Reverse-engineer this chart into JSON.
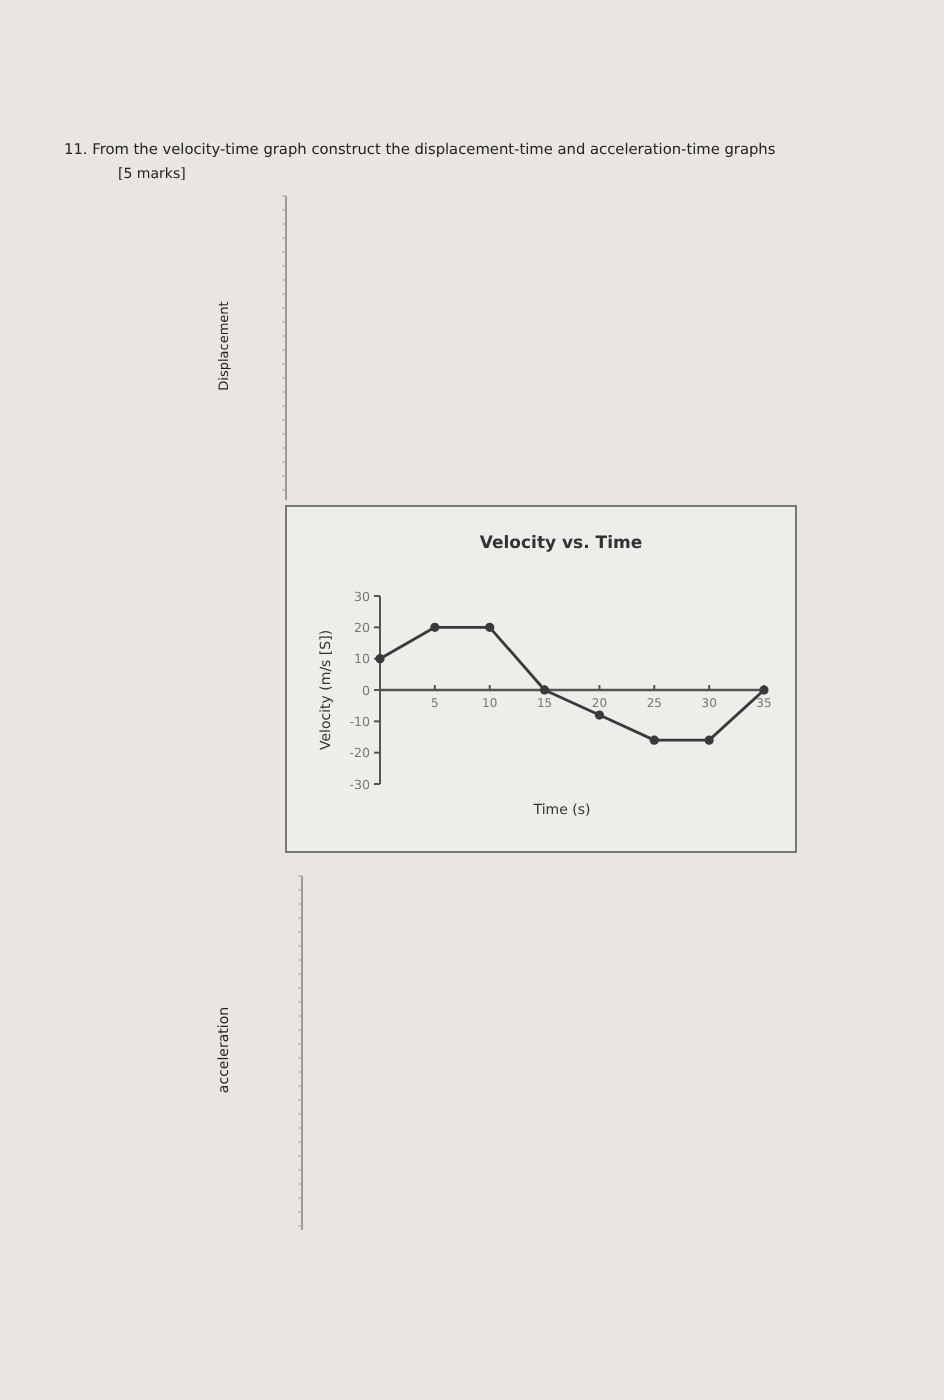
{
  "chart_data": {
    "type": "line",
    "title": "Velocity vs. Time",
    "xlabel": "Time (s)",
    "ylabel": "Velocity (m/s [S])",
    "x": [
      0,
      5,
      10,
      15,
      20,
      25,
      30,
      35
    ],
    "series": [
      {
        "color": "#3a3a3a",
        "values": [
          10,
          20,
          20,
          0,
          -8,
          -16,
          -16,
          0
        ]
      }
    ],
    "xlim": [
      0,
      35
    ],
    "xticks": [
      5,
      10,
      15,
      20,
      25,
      30,
      35
    ],
    "ylim": [
      -30,
      30
    ],
    "yticks": [
      -30,
      -20,
      -10,
      0,
      10,
      20,
      30
    ],
    "grid": false,
    "marker": "circle",
    "line_style": "solid",
    "annotations": [
      "11. From the velocity-time graph construct the displacement-time and acceleration-time graphs",
      "[5 marks]",
      "Displacement",
      "acceleration"
    ]
  }
}
